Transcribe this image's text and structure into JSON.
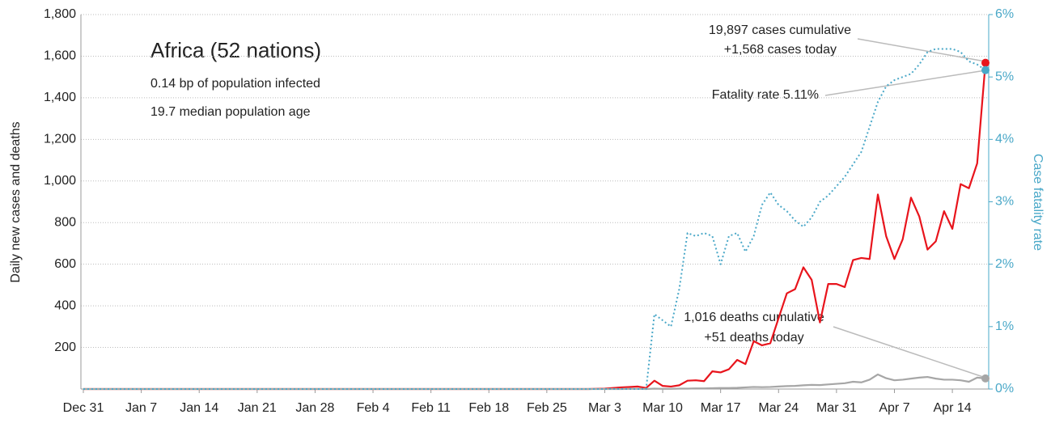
{
  "chart_data": {
    "type": "line",
    "ylabel": "Daily new cases and deaths",
    "y2label": "Case fatality rate",
    "ylim": [
      0,
      1800
    ],
    "yticks": [
      200,
      400,
      600,
      800,
      {
        "value": 1000,
        "label": "1,000"
      },
      {
        "value": 1200,
        "label": "1,200"
      },
      {
        "value": 1400,
        "label": "1,400"
      },
      {
        "value": 1600,
        "label": "1,600"
      },
      {
        "value": 1800,
        "label": "1,800"
      }
    ],
    "y2lim": [
      0,
      6
    ],
    "y2ticks": [
      {
        "value": 0,
        "label": "0%"
      },
      {
        "value": 1,
        "label": "1%"
      },
      {
        "value": 2,
        "label": "2%"
      },
      {
        "value": 3,
        "label": "3%"
      },
      {
        "value": 4,
        "label": "4%"
      },
      {
        "value": 5,
        "label": "5%"
      },
      {
        "value": 6,
        "label": "6%"
      }
    ],
    "grid": true,
    "categories": [
      "Dec 31",
      null,
      null,
      null,
      null,
      null,
      null,
      "Jan 7",
      null,
      null,
      null,
      null,
      null,
      null,
      "Jan 14",
      null,
      null,
      null,
      null,
      null,
      null,
      "Jan 21",
      null,
      null,
      null,
      null,
      null,
      null,
      "Jan 28",
      null,
      null,
      null,
      null,
      null,
      null,
      "Feb 4",
      null,
      null,
      null,
      null,
      null,
      null,
      "Feb 11",
      null,
      null,
      null,
      null,
      null,
      null,
      "Feb 18",
      null,
      null,
      null,
      null,
      null,
      null,
      "Feb 25",
      null,
      null,
      null,
      null,
      null,
      null,
      "Mar 3",
      null,
      null,
      null,
      null,
      null,
      null,
      "Mar 10",
      null,
      null,
      null,
      null,
      null,
      null,
      "Mar 17",
      null,
      null,
      null,
      null,
      null,
      null,
      "Mar 24",
      null,
      null,
      null,
      null,
      null,
      null,
      "Mar 31",
      null,
      null,
      null,
      null,
      null,
      null,
      "Apr 7",
      null,
      null,
      null,
      null,
      null,
      null,
      "Apr 14",
      null,
      null,
      null,
      null
    ],
    "series": [
      {
        "color": "#e8141c",
        "line_style": "solid",
        "values": [
          0,
          0,
          0,
          0,
          0,
          0,
          0,
          0,
          0,
          0,
          0,
          0,
          0,
          0,
          0,
          0,
          0,
          0,
          0,
          0,
          0,
          0,
          0,
          0,
          0,
          0,
          0,
          0,
          0,
          0,
          0,
          0,
          0,
          0,
          0,
          0,
          0,
          0,
          0,
          0,
          0,
          0,
          0,
          0,
          0,
          0,
          0,
          0,
          0,
          0,
          0,
          0,
          0,
          0,
          0,
          0,
          0,
          0,
          0,
          0,
          0,
          0,
          1,
          2,
          5,
          8,
          10,
          12,
          5,
          40,
          15,
          12,
          18,
          40,
          42,
          38,
          85,
          80,
          95,
          140,
          120,
          230,
          210,
          220,
          340,
          460,
          480,
          585,
          525,
          320,
          505,
          505,
          490,
          620,
          630,
          625,
          935,
          735,
          625,
          720,
          920,
          830,
          670,
          710,
          855,
          770,
          985,
          965,
          1085,
          1568
        ]
      },
      {
        "color": "#a6a6a6",
        "line_style": "solid",
        "values": [
          0,
          0,
          0,
          0,
          0,
          0,
          0,
          0,
          0,
          0,
          0,
          0,
          0,
          0,
          0,
          0,
          0,
          0,
          0,
          0,
          0,
          0,
          0,
          0,
          0,
          0,
          0,
          0,
          0,
          0,
          0,
          0,
          0,
          0,
          0,
          0,
          0,
          0,
          0,
          0,
          0,
          0,
          0,
          0,
          0,
          0,
          0,
          0,
          0,
          0,
          0,
          0,
          0,
          0,
          0,
          0,
          0,
          0,
          0,
          0,
          0,
          0,
          0,
          0,
          0,
          0,
          1,
          1,
          0,
          2,
          1,
          1,
          2,
          2,
          3,
          3,
          4,
          5,
          5,
          6,
          8,
          10,
          9,
          10,
          12,
          14,
          15,
          18,
          20,
          19,
          22,
          25,
          28,
          35,
          32,
          45,
          70,
          52,
          42,
          45,
          50,
          55,
          58,
          50,
          45,
          45,
          42,
          35,
          55,
          51
        ]
      },
      {
        "color": "#4aa8c8",
        "line_style": "dotted",
        "axis": "y2",
        "values": [
          0,
          0,
          0,
          0,
          0,
          0,
          0,
          0,
          0,
          0,
          0,
          0,
          0,
          0,
          0,
          0,
          0,
          0,
          0,
          0,
          0,
          0,
          0,
          0,
          0,
          0,
          0,
          0,
          0,
          0,
          0,
          0,
          0,
          0,
          0,
          0,
          0,
          0,
          0,
          0,
          0,
          0,
          0,
          0,
          0,
          0,
          0,
          0,
          0,
          0,
          0,
          0,
          0,
          0,
          0,
          0,
          0,
          0,
          0,
          0,
          0,
          0,
          0,
          0,
          0,
          0,
          0,
          0,
          0,
          1.2,
          1.1,
          1.0,
          1.6,
          2.5,
          2.45,
          2.5,
          2.45,
          2.0,
          2.45,
          2.5,
          2.2,
          2.45,
          2.95,
          3.15,
          2.95,
          2.85,
          2.7,
          2.6,
          2.75,
          3.0,
          3.1,
          3.25,
          3.4,
          3.6,
          3.8,
          4.2,
          4.6,
          4.85,
          4.95,
          5.0,
          5.05,
          5.2,
          5.4,
          5.45,
          5.45,
          5.45,
          5.4,
          5.25,
          5.2,
          5.11
        ]
      }
    ],
    "annotations": {
      "title": "Africa (52 nations)",
      "infected": "0.14 bp of population infected",
      "age": "19.7 median population age",
      "cases_cumulative": "19,897 cases cumulative",
      "cases_today": "+1,568 cases today",
      "fatality": "Fatality rate 5.11%",
      "deaths_cumulative": "1,016 deaths cumulative",
      "deaths_today": "+51 deaths today"
    }
  }
}
